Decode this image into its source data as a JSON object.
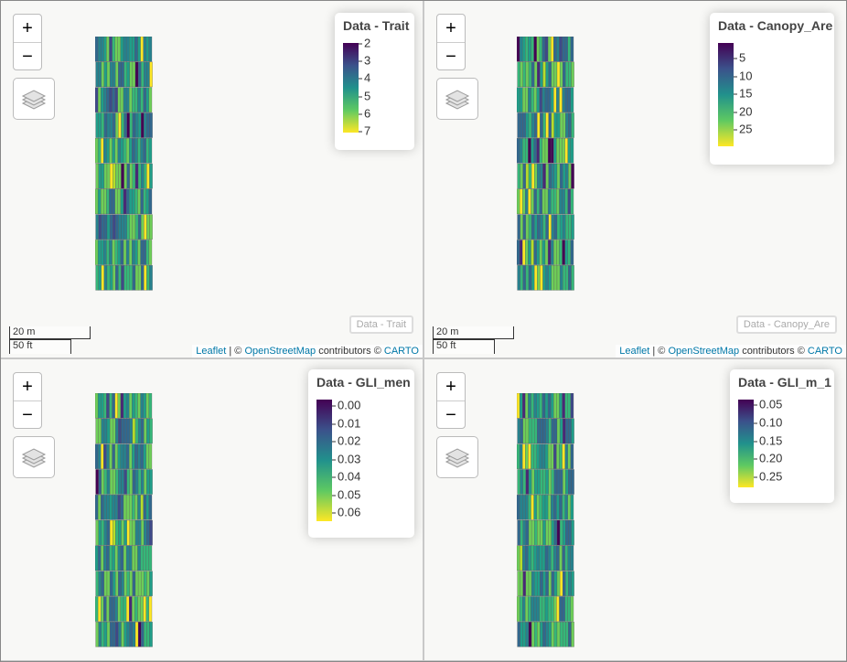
{
  "maps": [
    {
      "zoom": {
        "in": "+",
        "out": "−"
      },
      "legend": {
        "title": "Data - Trait",
        "labels": [
          "2",
          "3",
          "4",
          "5",
          "6",
          "7"
        ]
      },
      "layer_button": "Data - Trait",
      "scale": {
        "metric": "20 m",
        "imperial": "50 ft"
      },
      "attribution": {
        "leaflet": "Leaflet",
        "sep": "| ©",
        "osm": "OpenStreetMap",
        "contrib": "contributors ©",
        "carto": "CARTO"
      }
    },
    {
      "zoom": {
        "in": "+",
        "out": "−"
      },
      "legend": {
        "title": "Data - Canopy_Are",
        "labels": [
          "5",
          "10",
          "15",
          "20",
          "25"
        ]
      },
      "layer_button": "Data - Canopy_Are",
      "scale": {
        "metric": "20 m",
        "imperial": "50 ft"
      },
      "attribution": {
        "leaflet": "Leaflet",
        "sep": "| ©",
        "osm": "OpenStreetMap",
        "contrib": "contributors ©",
        "carto": "CARTO"
      }
    },
    {
      "zoom": {
        "in": "+",
        "out": "−"
      },
      "legend": {
        "title": "Data - GLI_men",
        "labels": [
          "0.00",
          "0.01",
          "0.02",
          "0.03",
          "0.04",
          "0.05",
          "0.06"
        ]
      }
    },
    {
      "zoom": {
        "in": "+",
        "out": "−"
      },
      "legend": {
        "title": "Data - GLI_m_1",
        "labels": [
          "0.05",
          "0.10",
          "0.15",
          "0.20",
          "0.25"
        ]
      }
    }
  ]
}
